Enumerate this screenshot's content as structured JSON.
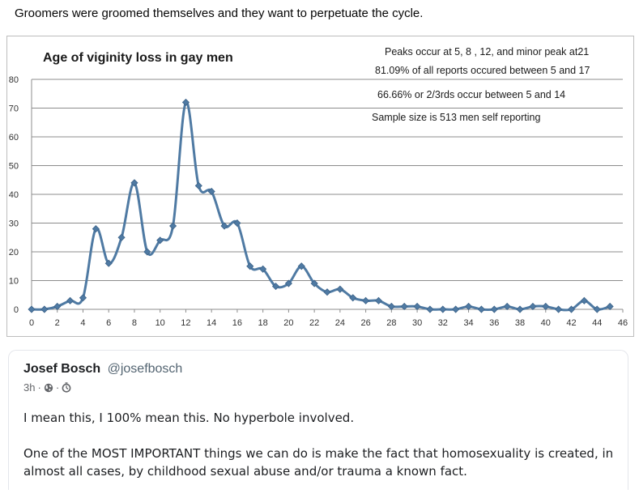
{
  "post": {
    "text": "Groomers were groomed themselves and they want to perpetuate the cycle."
  },
  "chart_data": {
    "type": "line",
    "title": "Age of viginity loss in gay men",
    "annotations": [
      "Peaks occur at 5, 8 , 12, and minor peak at21",
      "81.09% of all reports occured between 5 and 17",
      "66.66% or 2/3rds occur between 5 and 14",
      "Sample size is 513 men self reporting"
    ],
    "xlabel": "",
    "ylabel": "",
    "xlim": [
      0,
      46
    ],
    "ylim": [
      0,
      80
    ],
    "x_ticks": [
      0,
      2,
      4,
      6,
      8,
      10,
      12,
      14,
      16,
      18,
      20,
      22,
      24,
      26,
      28,
      30,
      32,
      34,
      36,
      38,
      40,
      42,
      44,
      46
    ],
    "y_ticks": [
      0,
      10,
      20,
      30,
      40,
      50,
      60,
      70,
      80
    ],
    "grid": true,
    "color": "#4f7aa3",
    "x": [
      0,
      1,
      2,
      3,
      4,
      5,
      6,
      7,
      8,
      9,
      10,
      11,
      12,
      13,
      14,
      15,
      16,
      17,
      18,
      19,
      20,
      21,
      22,
      23,
      24,
      25,
      26,
      27,
      28,
      29,
      30,
      31,
      32,
      33,
      34,
      35,
      36,
      37,
      38,
      39,
      40,
      41,
      42,
      43,
      44,
      45
    ],
    "values": [
      0,
      0,
      1,
      3,
      4,
      28,
      16,
      25,
      44,
      20,
      24,
      29,
      72,
      43,
      41,
      29,
      30,
      15,
      14,
      8,
      9,
      15,
      9,
      6,
      7,
      4,
      3,
      3,
      1,
      1,
      1,
      0,
      0,
      0,
      1,
      0,
      0,
      1,
      0,
      1,
      1,
      0,
      0,
      3,
      0,
      1
    ]
  },
  "quote": {
    "author_name": "Josef Bosch",
    "author_handle": "@josefbosch",
    "time": "3h",
    "separator": "·",
    "globe_icon": "globe-icon",
    "clock_icon": "clock-icon",
    "paragraphs": [
      "I mean this, I 100% mean this. No hyperbole involved.",
      "One of the MOST IMPORTANT things we can do is make the fact that homosexuality is created, in almost all cases, by childhood sexual abuse and/or trauma a known fact."
    ]
  }
}
